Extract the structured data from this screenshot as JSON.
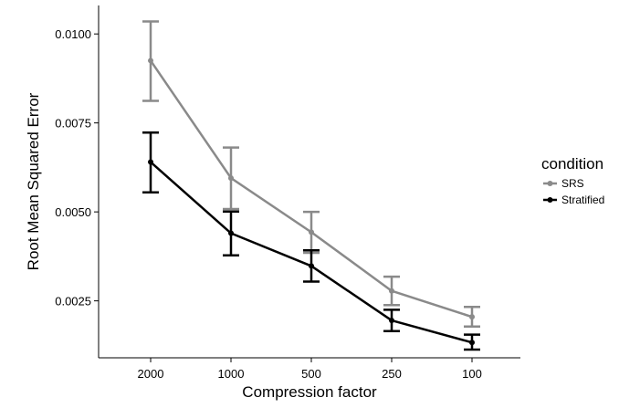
{
  "chart_data": {
    "type": "line",
    "xlabel": "Compression factor",
    "ylabel": "Root Mean Squared Error",
    "categories": [
      "2000",
      "1000",
      "500",
      "250",
      "100"
    ],
    "ylim": [
      0.0009,
      0.0108
    ],
    "yticks": [
      0.0025,
      0.005,
      0.0075,
      0.01
    ],
    "ytick_labels": [
      "0.0025",
      "0.0050",
      "0.0075",
      "0.0100"
    ],
    "grid": false,
    "legend": {
      "title": "condition",
      "placement": "right"
    },
    "series": [
      {
        "name": "SRS",
        "color": "#8a8a8a",
        "values": [
          0.00925,
          0.00595,
          0.00443,
          0.00278,
          0.00205
        ],
        "error_low": [
          0.00812,
          0.00508,
          0.00385,
          0.00238,
          0.00178
        ],
        "error_high": [
          0.01035,
          0.00681,
          0.005,
          0.00318,
          0.00233
        ]
      },
      {
        "name": "Stratified",
        "color": "#000000",
        "values": [
          0.0064,
          0.0044,
          0.00348,
          0.00195,
          0.00133
        ],
        "error_low": [
          0.00555,
          0.00378,
          0.00304,
          0.00165,
          0.00113
        ],
        "error_high": [
          0.00723,
          0.00501,
          0.00392,
          0.00225,
          0.00155
        ]
      }
    ]
  }
}
